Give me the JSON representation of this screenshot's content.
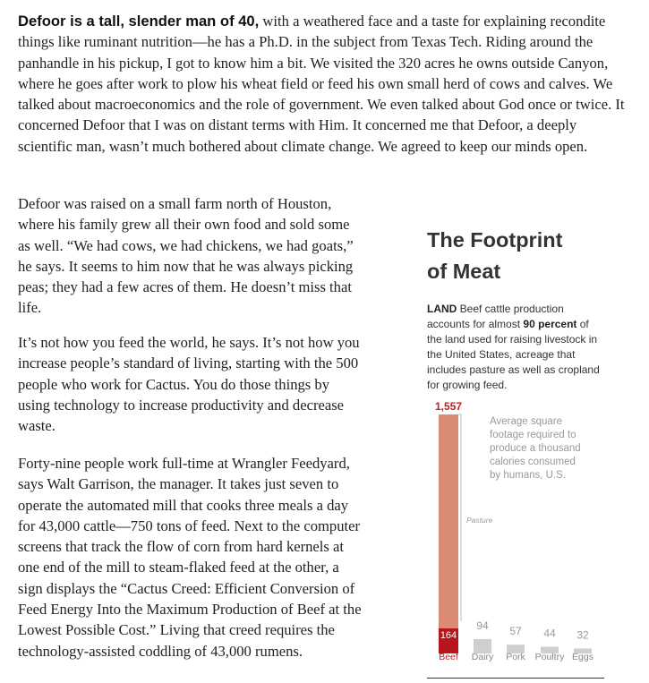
{
  "article": {
    "p1_lead": "Defoor is a tall, slender man of 40,",
    "p1_rest": " with a weathered face and a taste for explaining recondite things like ruminant nutrition—he has a Ph.D. in the subject from Texas Tech. Riding around the panhandle in his pickup, I got to know him a bit. We visited the 320 acres he owns outside Canyon, where he goes after work to plow his wheat field or feed his own small herd of cows and calves. We talked about macroeconomics and the role of government. We even talked about God once or twice. It concerned Defoor that I was on distant terms with Him. It concerned me that Defoor, a deeply scientific man, wasn’t much bothered about climate change. We agreed to keep our minds open.",
    "p2": "Defoor was raised on a small farm north of Houston, where his family grew all their own food and sold some as well. “We had cows, we had chickens, we had goats,” he says. It seems to him now that he was always picking peas; they had a few acres of them. He doesn’t miss that life.",
    "p3": "It’s not how you feed the world, he says. It’s not how you increase people’s standard of living, starting with the 500 people who work for Cactus. You do those things by using technology to increase productivity and decrease waste.",
    "p4": "Forty-nine people work full-time at Wrangler Feedyard, says Walt Garrison, the manager. It takes just seven to operate the automated mill that cooks three meals a day for 43,000 cattle—750 tons of feed. Next to the computer screens that track the flow of corn from hard kernels at one end of the mill to steam-flaked feed at the other, a sign displays the “Cactus Creed: Efficient Conversion of Feed Energy Into the Maximum Production of Beef at the Lowest Possible Cost.” Living that creed requires the technology-assisted coddling of 43,000 rumens."
  },
  "graphic": {
    "title_line1": "The Footprint",
    "title_line2": "of Meat",
    "desc_label": "LAND",
    "desc_part1": " Beef cattle production accounts for almost ",
    "desc_bold": "90 percent",
    "desc_part2": " of the land used for raising livestock in the United States, acreage that includes pasture as well as cropland for growing feed."
  },
  "chart_data": {
    "type": "bar",
    "annotation": [
      "Average square",
      "footage required to",
      "produce a thousand",
      "calories consumed",
      "by humans, U.S."
    ],
    "categories": [
      "Beef",
      "Dairy",
      "Pork",
      "Poultry",
      "Eggs"
    ],
    "values": [
      1557,
      94,
      57,
      44,
      32
    ],
    "beef_segments": [
      {
        "label": "Pasture",
        "value": 1393
      },
      {
        "label": "",
        "value": 164
      }
    ],
    "labels": [
      "1,557",
      "94",
      "57",
      "44",
      "32"
    ],
    "segment_value_label": "164",
    "colors": {
      "beef_pasture": "#d98c73",
      "beef_crop": "#b8141b",
      "other": "#cfcfcf",
      "label_red": "#c21b20",
      "label_gray": "#999999"
    }
  }
}
